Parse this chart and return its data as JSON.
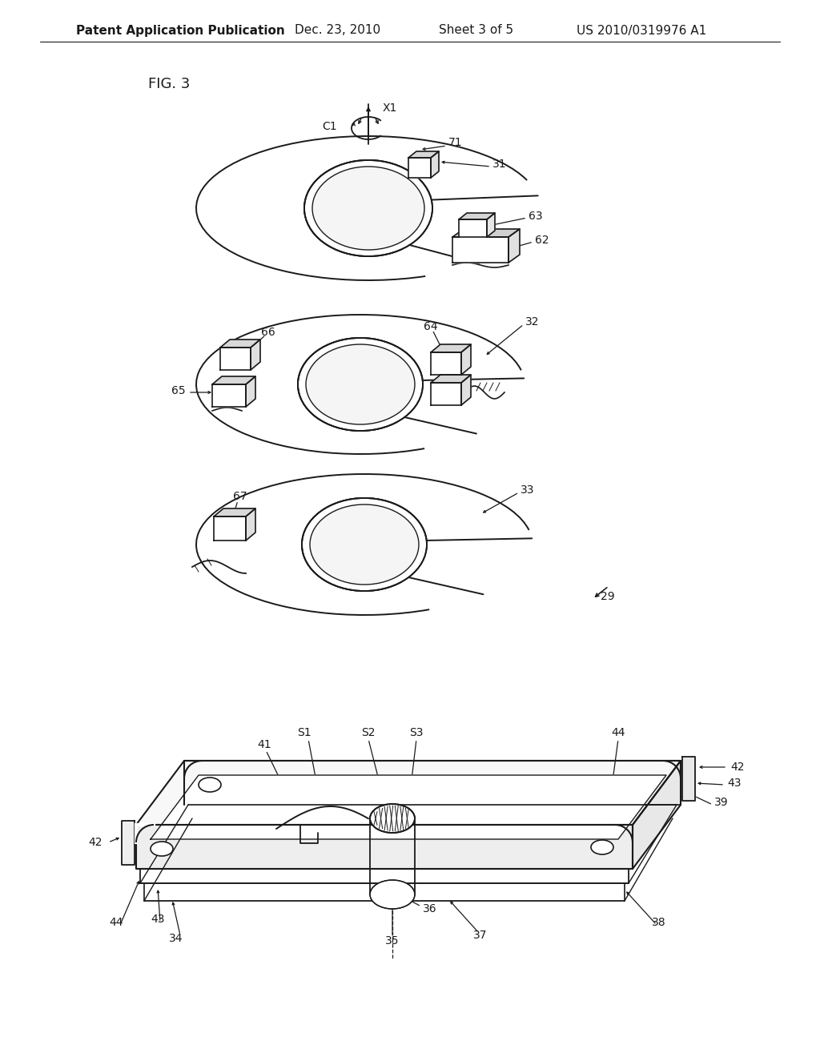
{
  "background_color": "#ffffff",
  "line_color": "#1a1a1a",
  "header_text": "Patent Application Publication",
  "header_date": "Dec. 23, 2010",
  "header_sheet": "Sheet 3 of 5",
  "header_patent": "US 2010/0319976 A1",
  "fig_label": "FIG. 3"
}
